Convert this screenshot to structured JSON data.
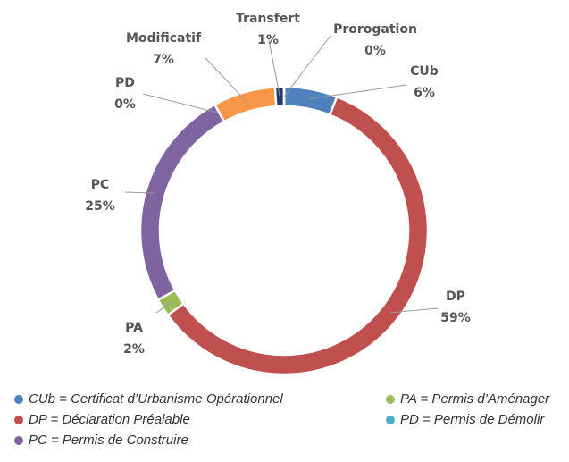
{
  "chart_data": {
    "type": "donut",
    "categories": [
      "CUb",
      "DP",
      "PA",
      "PC",
      "PD",
      "Modificatif",
      "Transfert",
      "Prorogation"
    ],
    "values": [
      6,
      59,
      2,
      25,
      0,
      7,
      1,
      0
    ],
    "value_labels": [
      "6%",
      "59%",
      "2%",
      "25%",
      "0%",
      "7%",
      "1%",
      "0%"
    ],
    "colors": [
      "#4f81bd",
      "#c0504d",
      "#9bbb59",
      "#8064a2",
      "#4bacc6",
      "#f79646",
      "#1f3864",
      "#2e5597"
    ],
    "legend": [
      {
        "label": "CUb = Certificat d’Urbanisme Opérationnel",
        "color": "#4f81bd"
      },
      {
        "label": "DP = Déclaration Préalable",
        "color": "#c0504d"
      },
      {
        "label": "PC = Permis de Construire",
        "color": "#8064a2"
      },
      {
        "label": "PA = Permis d’Aménager",
        "color": "#9bbb59"
      },
      {
        "label": "PD = Permis de Démolir",
        "color": "#4bacc6"
      }
    ]
  }
}
